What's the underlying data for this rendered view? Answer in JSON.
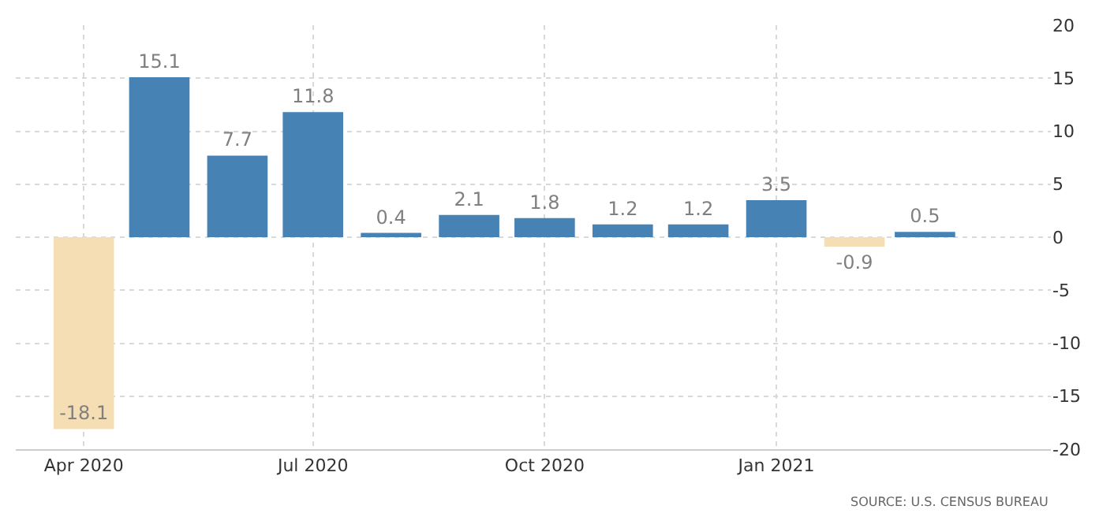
{
  "chart_data": {
    "type": "bar",
    "x": [
      "2020-04",
      "2020-05",
      "2020-06",
      "2020-07",
      "2020-08",
      "2020-09",
      "2020-10",
      "2020-11",
      "2020-12",
      "2021-01",
      "2021-02",
      "2021-03"
    ],
    "values": [
      -18.1,
      15.1,
      7.7,
      11.8,
      0.4,
      2.1,
      1.8,
      1.2,
      1.2,
      3.5,
      -0.9,
      0.5
    ],
    "colors": [
      "#f5deb3",
      "#4682b4",
      "#4682b4",
      "#4682b4",
      "#4682b4",
      "#4682b4",
      "#4682b4",
      "#4682b4",
      "#4682b4",
      "#4682b4",
      "#f5deb3",
      "#4682b4"
    ],
    "data_labels": true,
    "xlim": [
      "2020-03-05",
      "2021-04-20"
    ],
    "xticks": [
      {
        "value": "2020-04",
        "label": "Apr 2020"
      },
      {
        "value": "2020-07",
        "label": "Jul 2020"
      },
      {
        "value": "2020-10",
        "label": "Oct 2020"
      },
      {
        "value": "2021-01",
        "label": "Jan 2021"
      }
    ],
    "ylim": [
      -20,
      20
    ],
    "yticks": [
      -20,
      -15,
      -10,
      -5,
      0,
      5,
      10,
      15,
      20
    ],
    "grid": true,
    "annotations": [
      "SOURCE: U.S. CENSUS BUREAU"
    ]
  }
}
